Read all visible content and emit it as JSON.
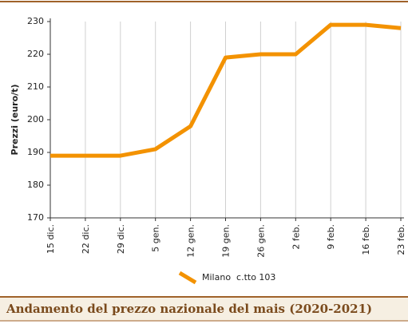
{
  "chart_data": {
    "type": "line",
    "title": "Andamento del prezzo nazionale del mais (2020-2021)",
    "y_label": "Prezzi (euro/t)",
    "categories": [
      "15 dic.",
      "22 dic.",
      "29 dic.",
      "5 gen.",
      "12 gen.",
      "19 gen.",
      "26 gen.",
      "2 feb.",
      "9 feb.",
      "16 feb.",
      "23 feb."
    ],
    "series": [
      {
        "name": "Milano  c.tto 103",
        "color": "#f39200",
        "values": [
          189,
          189,
          189,
          191,
          198,
          219,
          220,
          220,
          229,
          229,
          228
        ]
      }
    ],
    "ylim": [
      170,
      230
    ],
    "yticks": [
      170,
      180,
      190,
      200,
      210,
      220,
      230
    ],
    "grid": "x",
    "legend": "bottom"
  }
}
